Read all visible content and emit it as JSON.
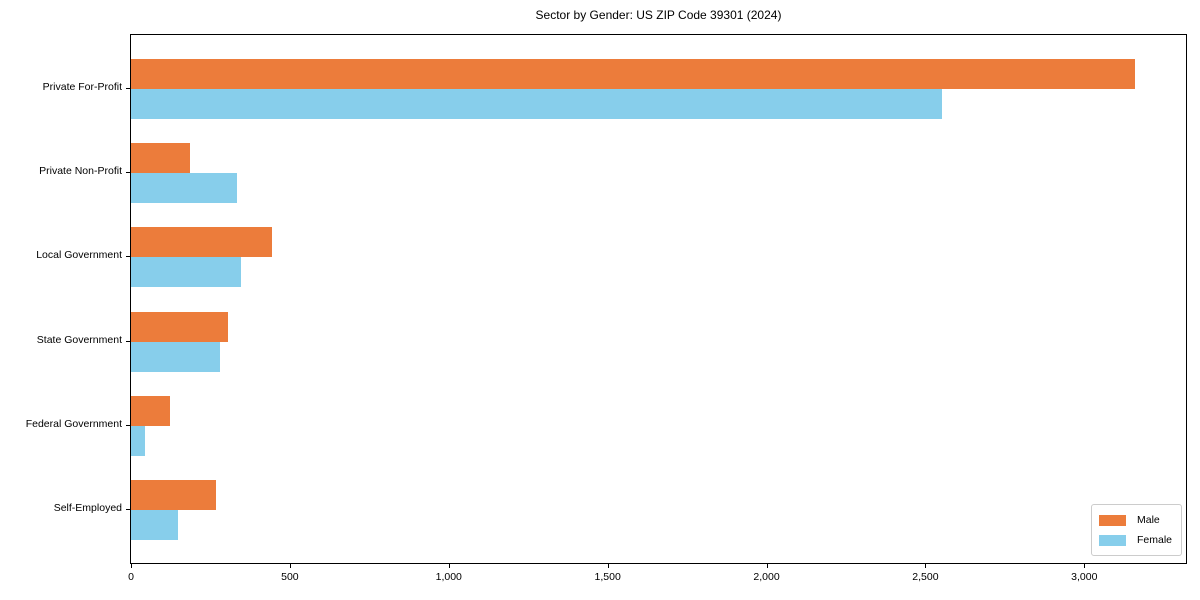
{
  "chart_data": {
    "type": "bar",
    "orientation": "horizontal",
    "title": "Sector by Gender: US ZIP Code 39301 (2024)",
    "categories": [
      "Private For-Profit",
      "Private Non-Profit",
      "Local Government",
      "State Government",
      "Federal Government",
      "Self-Employed"
    ],
    "series": [
      {
        "name": "Male",
        "color": "#EC7C3B",
        "values": [
          3160,
          186,
          443,
          305,
          123,
          267
        ]
      },
      {
        "name": "Female",
        "color": "#87CEEB",
        "values": [
          2553,
          333,
          346,
          280,
          44,
          148
        ]
      }
    ],
    "xlabel": "",
    "ylabel": "",
    "xlim": [
      0,
      3320
    ],
    "x_ticks": [
      0,
      500,
      1000,
      1500,
      2000,
      2500,
      3000
    ],
    "x_tick_labels": [
      "0",
      "500",
      "1,000",
      "1,500",
      "2,000",
      "2,500",
      "3,000"
    ],
    "grid": false,
    "legend_position": "lower right",
    "legend_entries": [
      "Male",
      "Female"
    ]
  },
  "colors": {
    "background": "#ffffff",
    "axis": "#000000",
    "male": "#EC7C3B",
    "female": "#87CEEB",
    "legend_border": "#cccccc"
  }
}
